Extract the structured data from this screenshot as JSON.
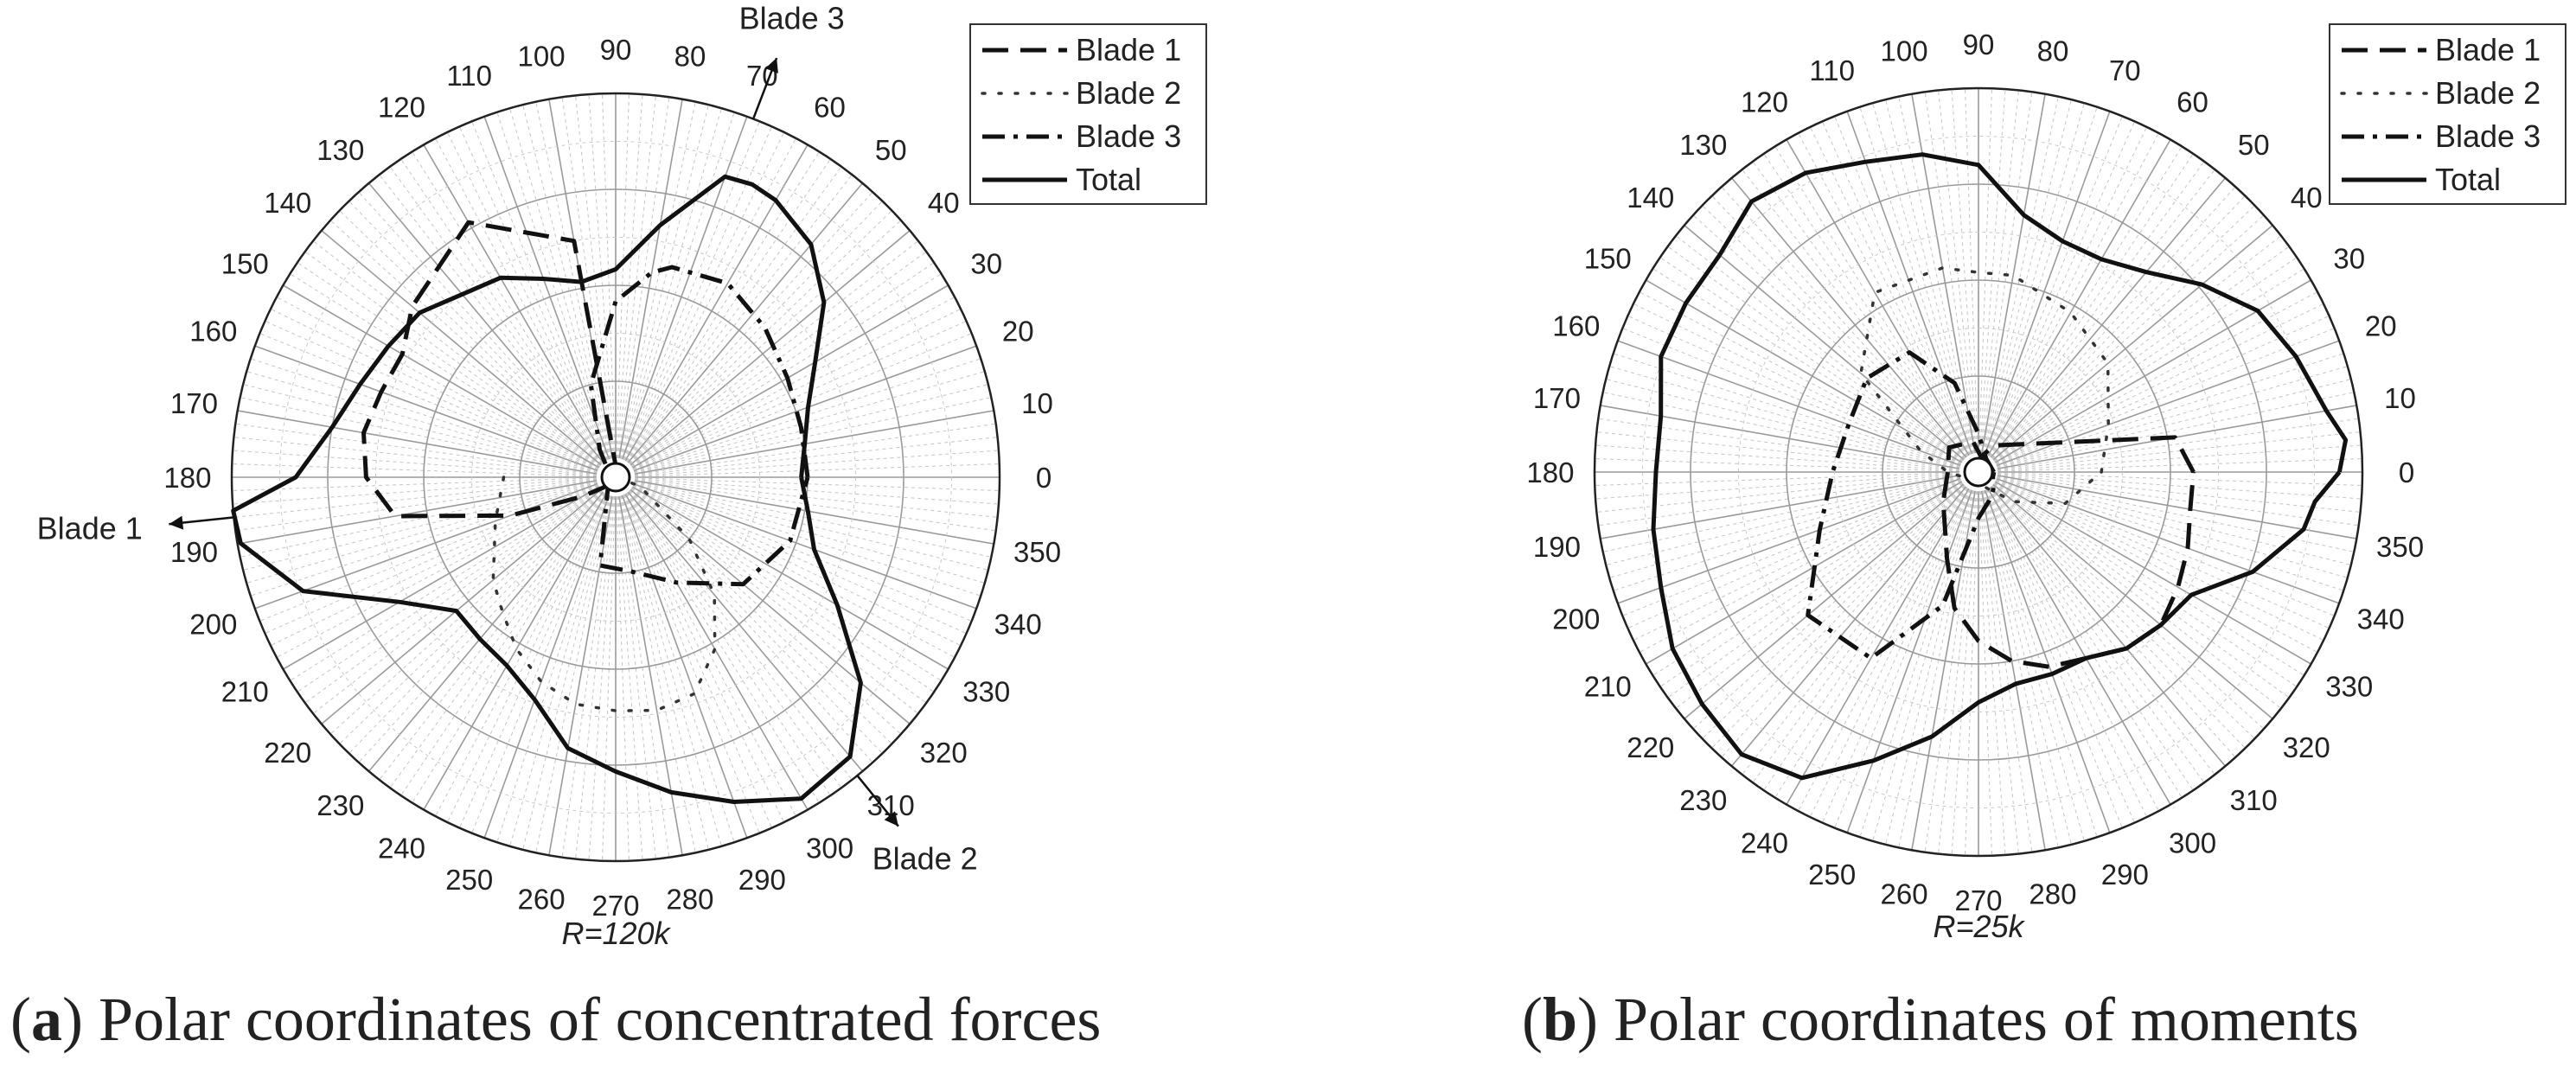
{
  "figure": {
    "panels": [
      {
        "id": "a",
        "caption_letter": "a",
        "caption_text": ") Polar coordinates of concentrated forces",
        "radius_label": "R=120k",
        "angle_ticks": [
          "0",
          "10",
          "20",
          "30",
          "40",
          "50",
          "60",
          "70",
          "80",
          "90",
          "100",
          "110",
          "120",
          "130",
          "140",
          "150",
          "160",
          "170",
          "180",
          "190",
          "200",
          "210",
          "220",
          "230",
          "240",
          "250",
          "260",
          "270",
          "280",
          "290",
          "300",
          "310",
          "320",
          "330",
          "340",
          "350"
        ],
        "annotations": [
          {
            "text": "Blade 3",
            "angle_deg": 69
          },
          {
            "text": "Blade 1",
            "angle_deg": 186
          },
          {
            "text": "Blade 2",
            "angle_deg": 309
          }
        ]
      },
      {
        "id": "b",
        "caption_letter": "b",
        "caption_text": ") Polar coordinates of moments",
        "radius_label": "R=25k",
        "angle_ticks": [
          "0",
          "10",
          "20",
          "30",
          "40",
          "50",
          "60",
          "70",
          "80",
          "90",
          "100",
          "110",
          "120",
          "130",
          "140",
          "150",
          "160",
          "170",
          "180",
          "190",
          "200",
          "210",
          "220",
          "230",
          "240",
          "250",
          "260",
          "270",
          "280",
          "290",
          "300",
          "310",
          "320",
          "330",
          "340",
          "350"
        ],
        "annotations": []
      }
    ],
    "legend": [
      "Blade 1",
      "Blade 2",
      "Blade 3",
      "Total"
    ]
  },
  "chart_data": [
    {
      "type": "polar_line",
      "panel": "a",
      "r_max": 120000,
      "radius_label": "R=120k",
      "grid": true,
      "legend_position": "top-right",
      "theta_ticks_deg": [
        0,
        10,
        20,
        30,
        40,
        50,
        60,
        70,
        80,
        90,
        100,
        110,
        120,
        130,
        140,
        150,
        160,
        170,
        180,
        190,
        200,
        210,
        220,
        230,
        240,
        250,
        260,
        270,
        280,
        290,
        300,
        310,
        320,
        330,
        340,
        350
      ],
      "series": [
        {
          "name": "Blade 1",
          "style": "dashed",
          "theta": [
            0,
            60,
            100,
            120,
            140,
            150,
            160,
            170,
            180,
            190,
            200,
            210,
            220,
            240,
            300
          ],
          "r": [
            0,
            1000,
            75000,
            92000,
            83000,
            77000,
            78000,
            80000,
            78000,
            70000,
            35000,
            12000,
            5000,
            1000,
            0
          ]
        },
        {
          "name": "Blade 2",
          "style": "dotted",
          "theta": [
            180,
            200,
            220,
            230,
            240,
            250,
            260,
            270,
            280,
            290,
            300,
            310,
            320,
            340,
            360
          ],
          "r": [
            35000,
            40000,
            50000,
            55000,
            62000,
            68000,
            72000,
            73000,
            74000,
            72000,
            62000,
            48000,
            30000,
            8000,
            0
          ]
        },
        {
          "name": "Blade 3",
          "style": "dashdot",
          "theta": [
            0,
            15,
            30,
            45,
            60,
            75,
            80,
            90,
            105,
            120,
            140,
            180,
            220,
            260,
            280,
            300,
            320,
            340,
            360
          ],
          "r": [
            60000,
            60000,
            62000,
            66000,
            70000,
            68000,
            65000,
            55000,
            30000,
            10000,
            3000,
            0,
            3000,
            28000,
            30000,
            38000,
            52000,
            58000,
            60000
          ]
        },
        {
          "name": "Total",
          "style": "solid",
          "theta": [
            0,
            10,
            20,
            30,
            40,
            50,
            60,
            65,
            70,
            80,
            90,
            100,
            110,
            120,
            140,
            150,
            160,
            170,
            180,
            185,
            190,
            200,
            210,
            220,
            230,
            240,
            250,
            260,
            270,
            280,
            290,
            300,
            310,
            320,
            330,
            340,
            350,
            360
          ],
          "r": [
            58000,
            60000,
            64000,
            72000,
            85000,
            95000,
            100000,
            101000,
            100000,
            80000,
            65000,
            62000,
            66000,
            72000,
            80000,
            82000,
            85000,
            90000,
            100000,
            120000,
            119000,
            104000,
            78000,
            65000,
            66000,
            68000,
            74000,
            86000,
            92000,
            100000,
            108000,
            116000,
            114000,
            100000,
            80000,
            66000,
            61000,
            58000
          ]
        }
      ]
    },
    {
      "type": "polar_line",
      "panel": "b",
      "r_max": 25000,
      "radius_label": "R=25k",
      "grid": true,
      "legend_position": "top-right",
      "theta_ticks_deg": [
        0,
        10,
        20,
        30,
        40,
        50,
        60,
        70,
        80,
        90,
        100,
        110,
        120,
        130,
        140,
        150,
        160,
        170,
        180,
        190,
        200,
        210,
        220,
        230,
        240,
        250,
        260,
        270,
        280,
        290,
        300,
        310,
        320,
        330,
        340,
        350
      ],
      "series": [
        {
          "name": "Blade 1",
          "style": "dashed",
          "theta": [
            0,
            10,
            60,
            80,
            100,
            140,
            180,
            220,
            250,
            260,
            270,
            280,
            290,
            300,
            310,
            320,
            330,
            340,
            350,
            360
          ],
          "r": [
            14000,
            13000,
            2000,
            1000,
            2000,
            2500,
            2000,
            3000,
            6000,
            9000,
            11000,
            12500,
            13500,
            14000,
            15000,
            15500,
            15000,
            14500,
            14000,
            14000
          ]
        },
        {
          "name": "Blade 2",
          "style": "dotted",
          "theta": [
            0,
            20,
            40,
            60,
            80,
            90,
            100,
            120,
            140,
            160,
            180,
            200,
            250,
            290,
            320,
            340,
            360
          ],
          "r": [
            8000,
            9000,
            11000,
            12000,
            13000,
            13000,
            13500,
            13500,
            10000,
            4000,
            2000,
            1000,
            500,
            1000,
            3000,
            6000,
            8000
          ]
        },
        {
          "name": "Blade 3",
          "style": "dashdot",
          "theta": [
            0,
            60,
            90,
            105,
            120,
            140,
            160,
            180,
            200,
            220,
            240,
            255,
            270,
            290,
            310,
            340,
            360
          ],
          "r": [
            1000,
            1000,
            2500,
            6000,
            9000,
            9500,
            9000,
            9500,
            11000,
            14500,
            14000,
            9000,
            3000,
            2000,
            1500,
            1000,
            1000
          ]
        },
        {
          "name": "Total",
          "style": "solid",
          "theta": [
            0,
            5,
            10,
            20,
            30,
            40,
            50,
            60,
            70,
            80,
            90,
            100,
            110,
            120,
            130,
            140,
            150,
            160,
            170,
            180,
            190,
            200,
            210,
            220,
            230,
            240,
            250,
            260,
            270,
            280,
            290,
            300,
            310,
            320,
            330,
            340,
            350,
            355,
            360
          ],
          "r": [
            23500,
            24000,
            23000,
            22000,
            21000,
            19000,
            17000,
            16000,
            16000,
            17000,
            20000,
            21000,
            21500,
            22500,
            23000,
            22000,
            22000,
            22000,
            21000,
            21000,
            21500,
            22000,
            23000,
            23500,
            24000,
            23000,
            20000,
            17500,
            15000,
            14000,
            14000,
            14000,
            15000,
            15500,
            16000,
            19000,
            21500,
            22000,
            23500
          ]
        }
      ]
    }
  ]
}
